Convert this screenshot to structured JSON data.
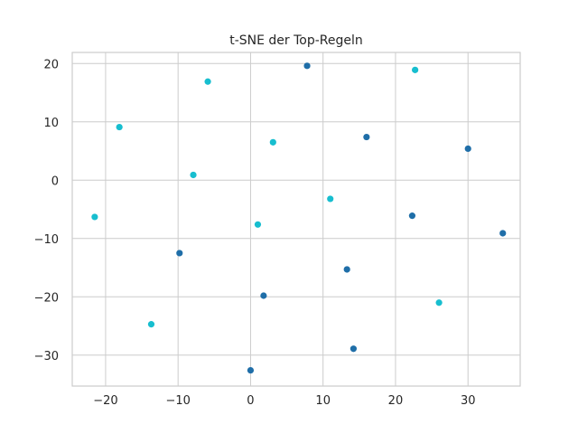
{
  "chart_data": {
    "type": "scatter",
    "title": "t-SNE der Top-Regeln",
    "xlabel": "",
    "ylabel": "",
    "xlim": [
      -24.6,
      37.2
    ],
    "ylim": [
      -35.3,
      21.9
    ],
    "xticks": [
      -20,
      -10,
      0,
      10,
      20,
      30
    ],
    "yticks": [
      -30,
      -20,
      -10,
      0,
      10,
      20
    ],
    "xtick_labels": [
      "−20",
      "−10",
      "0",
      "10",
      "20",
      "30"
    ],
    "ytick_labels": [
      "−30",
      "−20",
      "−10",
      "0",
      "10",
      "20"
    ],
    "grid": true,
    "legend": "none",
    "colors": {
      "dark": "#1f6ea8",
      "light": "#17becf",
      "grid": "#cccccc",
      "text": "#262626"
    },
    "series": [
      {
        "color": "#1f6ea8",
        "points": [
          {
            "x": 7.8,
            "y": 19.6
          },
          {
            "x": 16.0,
            "y": 7.4
          },
          {
            "x": 30.0,
            "y": 5.4
          },
          {
            "x": 22.3,
            "y": -6.1
          },
          {
            "x": 34.8,
            "y": -9.1
          },
          {
            "x": -9.8,
            "y": -12.5
          },
          {
            "x": 1.8,
            "y": -19.8
          },
          {
            "x": 13.3,
            "y": -15.3
          },
          {
            "x": 14.2,
            "y": -28.9
          },
          {
            "x": 0.0,
            "y": -32.6
          }
        ]
      },
      {
        "color": "#17becf",
        "points": [
          {
            "x": 22.7,
            "y": 18.9
          },
          {
            "x": -5.9,
            "y": 16.9
          },
          {
            "x": -18.1,
            "y": 9.1
          },
          {
            "x": 3.1,
            "y": 6.5
          },
          {
            "x": -7.9,
            "y": 0.9
          },
          {
            "x": 11.0,
            "y": -3.2
          },
          {
            "x": 1.0,
            "y": -7.6
          },
          {
            "x": -21.5,
            "y": -6.3
          },
          {
            "x": -13.7,
            "y": -24.7
          },
          {
            "x": 26.0,
            "y": -21.0
          }
        ]
      }
    ]
  }
}
